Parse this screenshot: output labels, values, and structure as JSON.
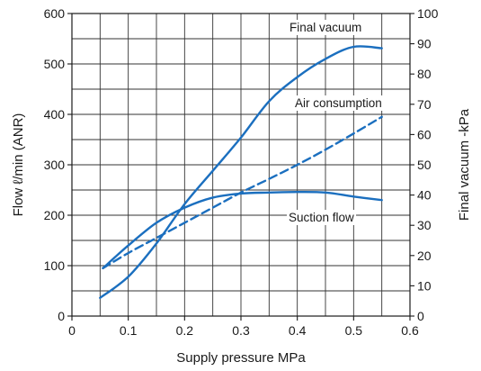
{
  "chart_data": {
    "type": "line",
    "title": "",
    "xlabel": "Supply pressure  MPa",
    "ylabel_left": "Flow  ℓ/min (ANR)",
    "ylabel_right": "Final vacuum  -kPa",
    "xlim": [
      0,
      0.6
    ],
    "ylim_left": [
      0,
      600
    ],
    "ylim_right": [
      0,
      100
    ],
    "x_ticks": [
      "0",
      "0.1",
      "0.2",
      "0.3",
      "0.4",
      "0.5",
      "0.6"
    ],
    "y_left_ticks": [
      "0",
      "100",
      "200",
      "300",
      "400",
      "500",
      "600"
    ],
    "y_right_ticks": [
      "0",
      "10",
      "20",
      "30",
      "40",
      "50",
      "60",
      "70",
      "80",
      "90",
      "100"
    ],
    "grid": true,
    "series": [
      {
        "name": "Final vacuum",
        "axis": "right",
        "style": "solid",
        "x": [
          0.05,
          0.1,
          0.15,
          0.2,
          0.25,
          0.3,
          0.35,
          0.4,
          0.45,
          0.5,
          0.55
        ],
        "y": [
          6,
          13,
          24,
          37,
          48,
          59,
          71,
          79,
          85,
          89,
          88.5
        ]
      },
      {
        "name": "Air consumption",
        "axis": "left",
        "style": "dashed",
        "x": [
          0.055,
          0.1,
          0.15,
          0.2,
          0.25,
          0.3,
          0.35,
          0.4,
          0.45,
          0.5,
          0.55
        ],
        "y": [
          95,
          125,
          155,
          185,
          215,
          245,
          272,
          300,
          330,
          362,
          395
        ]
      },
      {
        "name": "Suction flow",
        "axis": "left",
        "style": "solid",
        "x": [
          0.055,
          0.1,
          0.15,
          0.2,
          0.25,
          0.3,
          0.35,
          0.4,
          0.45,
          0.5,
          0.55
        ],
        "y": [
          95,
          140,
          185,
          215,
          235,
          243,
          245,
          246,
          245,
          237,
          230
        ]
      }
    ],
    "color": "#1b6fbf"
  }
}
